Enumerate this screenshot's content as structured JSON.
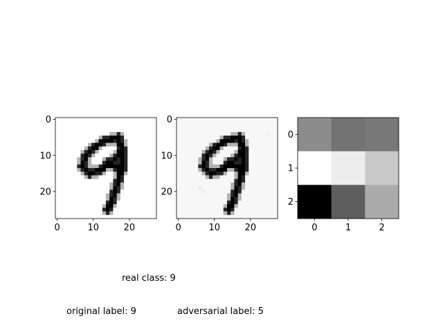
{
  "chart_data": [
    {
      "type": "heatmap",
      "colormap": "gray_r",
      "rows": 28,
      "cols": 28,
      "xticks": [
        "0",
        "10",
        "20"
      ],
      "yticks": [
        "0",
        "10",
        "20"
      ],
      "xlim": [
        -0.5,
        27.5
      ],
      "ylim": [
        27.5,
        -0.5
      ],
      "strokes": [
        [
          [
            17,
            5
          ],
          [
            13,
            6
          ],
          [
            10,
            8
          ],
          [
            8,
            10
          ],
          [
            7,
            13
          ],
          [
            9,
            15
          ],
          [
            12,
            14
          ],
          [
            15,
            12
          ],
          [
            17,
            10
          ],
          [
            18,
            8
          ],
          [
            17,
            5
          ]
        ],
        [
          [
            17,
            5
          ],
          [
            18,
            9
          ],
          [
            18,
            13
          ],
          [
            17,
            17
          ],
          [
            16,
            20
          ],
          [
            15,
            23
          ],
          [
            14,
            25
          ]
        ],
        [
          [
            14,
            12
          ],
          [
            16,
            13
          ],
          [
            18,
            14
          ]
        ]
      ]
    },
    {
      "type": "heatmap",
      "colormap": "gray_r",
      "rows": 28,
      "cols": 28,
      "xticks": [
        "0",
        "10",
        "20"
      ],
      "yticks": [
        "0",
        "10",
        "20"
      ],
      "xlim": [
        -0.5,
        27.5
      ],
      "ylim": [
        27.5,
        -0.5
      ],
      "background_value": 0.03,
      "strokes": [
        [
          [
            17,
            5
          ],
          [
            13,
            6
          ],
          [
            10,
            8
          ],
          [
            8,
            10
          ],
          [
            7,
            13
          ],
          [
            9,
            15
          ],
          [
            12,
            14
          ],
          [
            15,
            12
          ],
          [
            17,
            10
          ],
          [
            18,
            8
          ],
          [
            17,
            5
          ]
        ],
        [
          [
            17,
            5
          ],
          [
            18,
            9
          ],
          [
            18,
            13
          ],
          [
            17,
            17
          ],
          [
            16,
            20
          ],
          [
            15,
            23
          ],
          [
            14,
            25
          ]
        ],
        [
          [
            14,
            12
          ],
          [
            16,
            13
          ],
          [
            18,
            14
          ]
        ]
      ],
      "faint_marks": [
        [
          6,
          19,
          0.08
        ],
        [
          7,
          20,
          0.06
        ],
        [
          25,
          4,
          0.05
        ]
      ]
    },
    {
      "type": "heatmap",
      "colormap": "gray",
      "rows": 3,
      "cols": 3,
      "xticks": [
        "0",
        "1",
        "2"
      ],
      "yticks": [
        "0",
        "1",
        "2"
      ],
      "values": [
        [
          0.55,
          0.45,
          0.47
        ],
        [
          1.0,
          0.93,
          0.79
        ],
        [
          0.0,
          0.37,
          0.67
        ]
      ]
    }
  ],
  "captions": {
    "real_class": "real class: 9",
    "original_label": "original label: 9",
    "adversarial_label": "adversarial label: 5"
  }
}
